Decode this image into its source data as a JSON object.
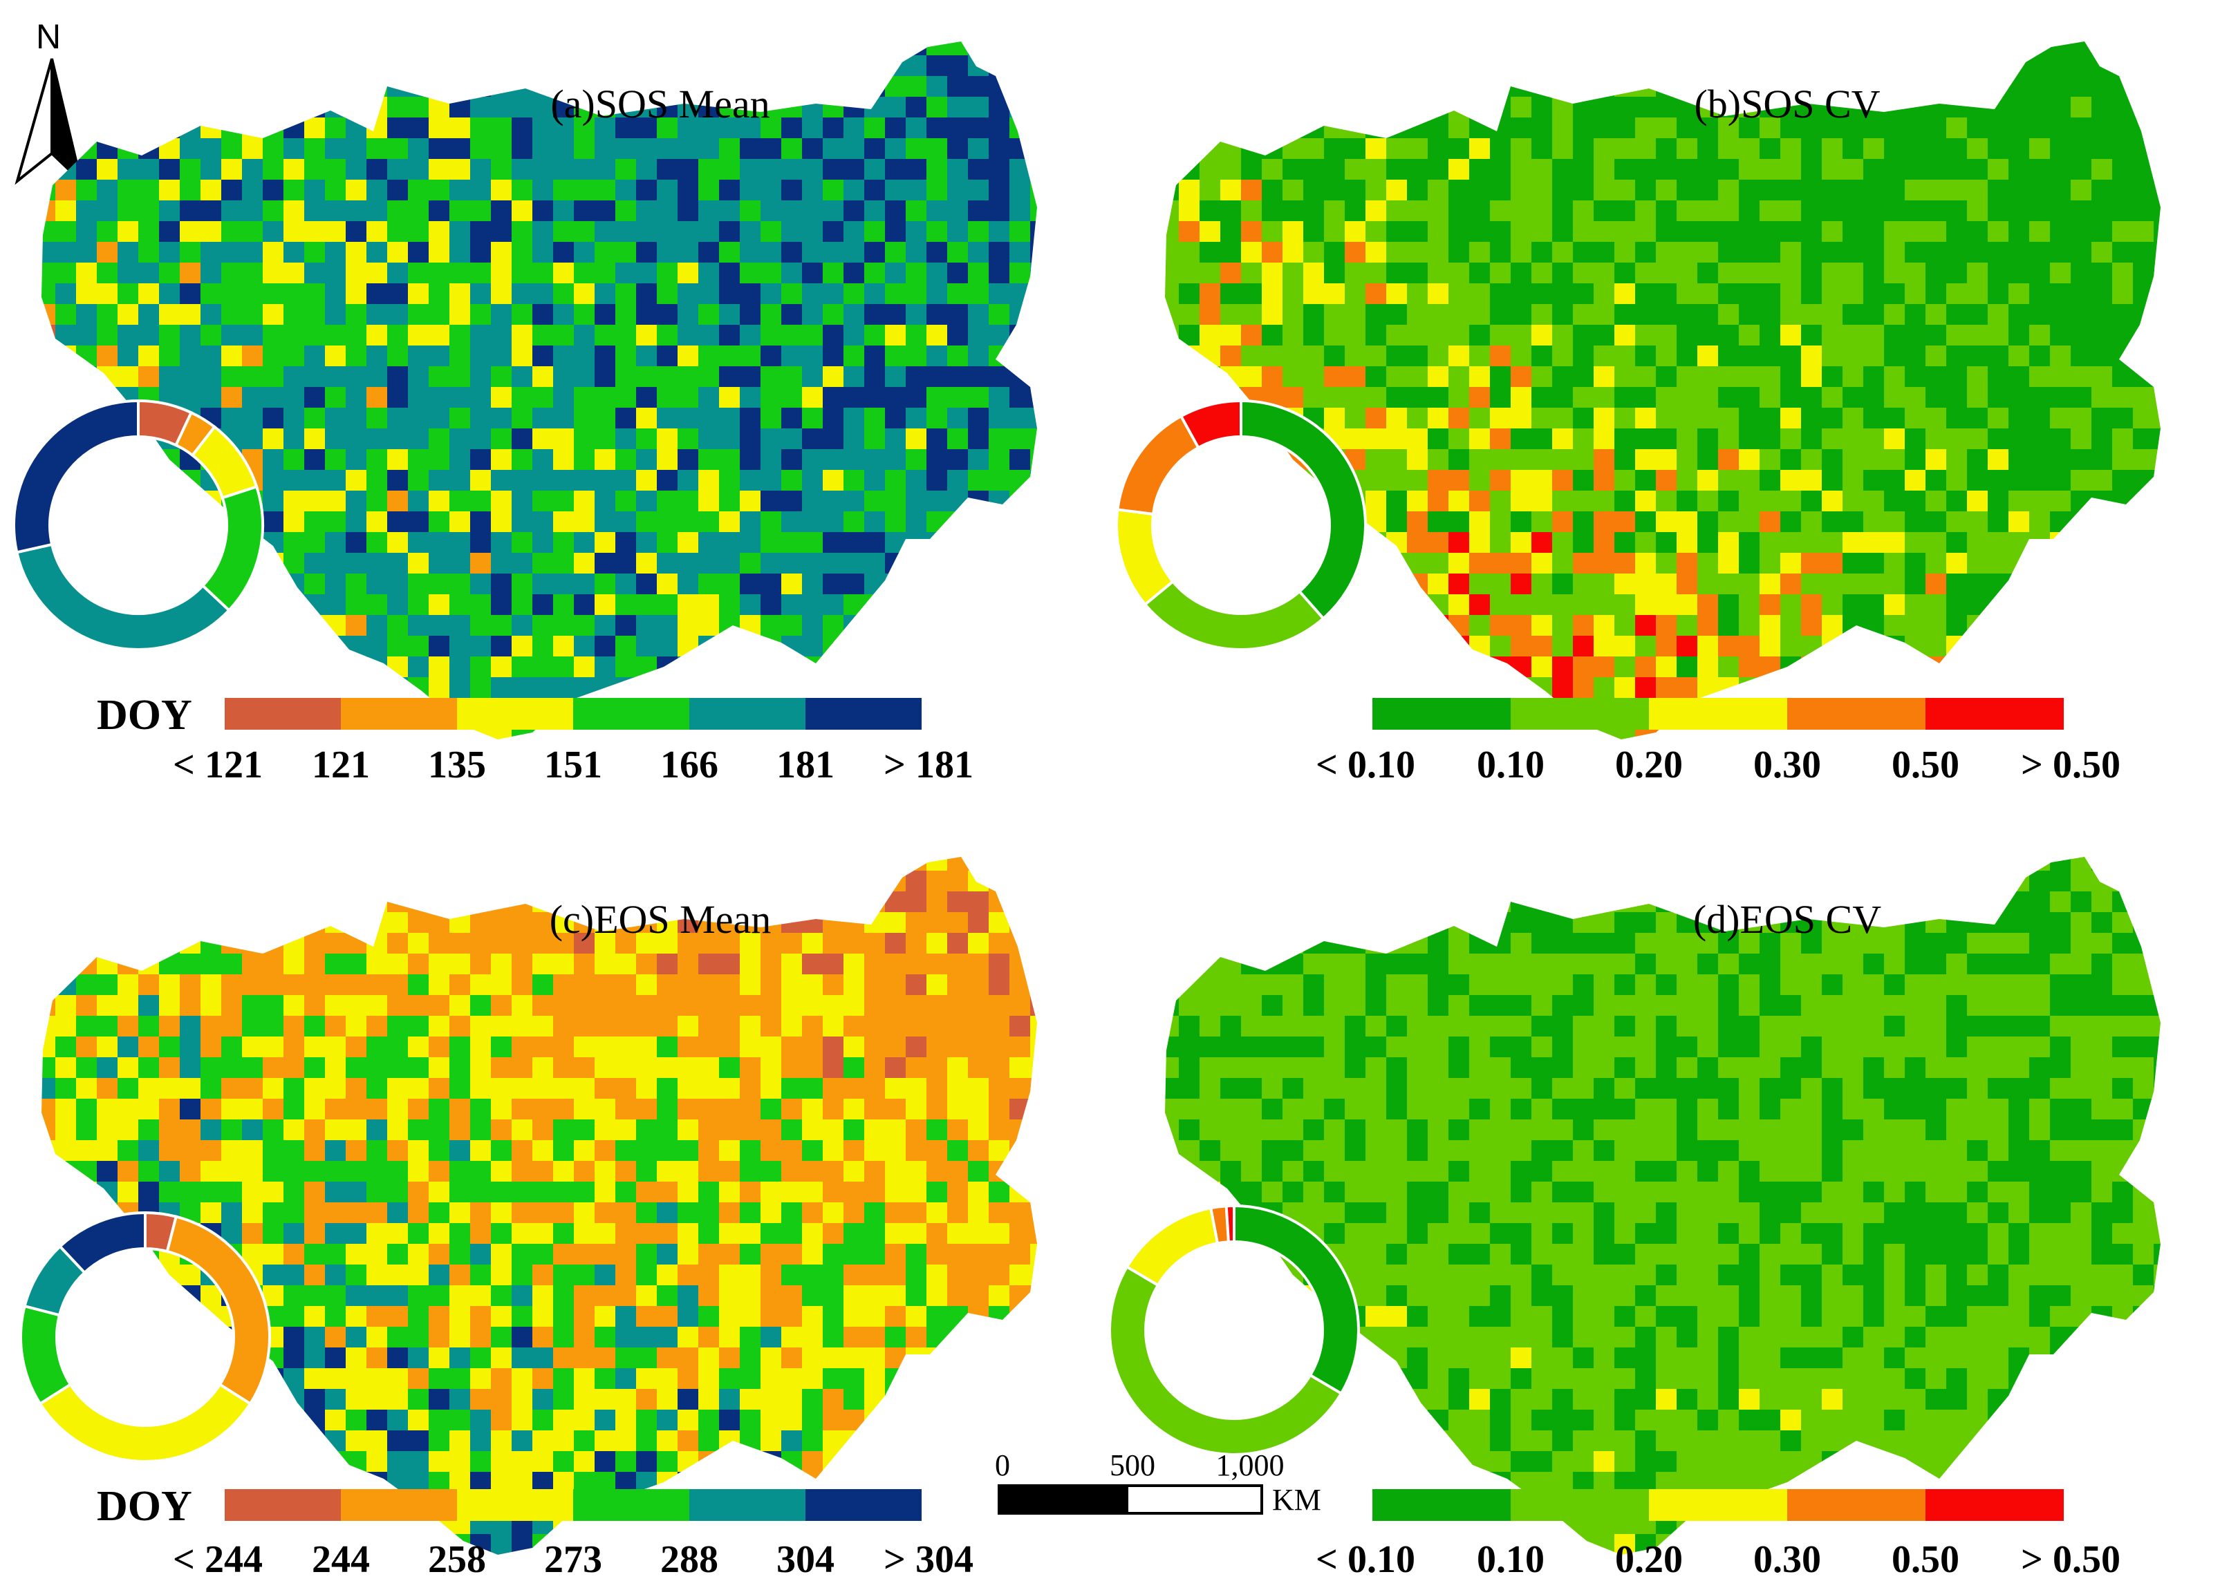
{
  "north_arrow": {
    "letter": "N"
  },
  "panels": [
    {
      "id": "a",
      "title": "(a)SOS Mean",
      "palette": [
        "#d35c3b",
        "#f89a0c",
        "#f7f400",
        "#14cc14",
        "#06918e",
        "#072f7e"
      ],
      "legend": {
        "prefix": "DOY",
        "ticks": [
          "< 121",
          "121",
          "135",
          "151",
          "166",
          "181",
          "> 181"
        ]
      },
      "donut": [
        {
          "category": "< 121",
          "color": "#d35c3b",
          "share": 0.07
        },
        {
          "category": "121-135",
          "color": "#f89a0c",
          "share": 0.035
        },
        {
          "category": "135-151",
          "color": "#f7f400",
          "share": 0.095
        },
        {
          "category": "151-166",
          "color": "#14cc14",
          "share": 0.17
        },
        {
          "category": "166-181",
          "color": "#06918e",
          "share": 0.345
        },
        {
          "category": "> 181",
          "color": "#072f7e",
          "share": 0.285
        }
      ],
      "map_mix": [
        0.1,
        0.05,
        0.12,
        0.22,
        0.28,
        0.23
      ]
    },
    {
      "id": "b",
      "title": "(b)SOS CV",
      "palette": [
        "#07a807",
        "#66cc00",
        "#f7f400",
        "#f87c0a",
        "#f80606"
      ],
      "legend": {
        "prefix": "",
        "ticks": [
          "< 0.10",
          "0.10",
          "0.20",
          "0.30",
          "0.50",
          "> 0.50"
        ]
      },
      "donut": [
        {
          "category": "< 0.10",
          "color": "#07a807",
          "share": 0.385
        },
        {
          "category": "0.10-0.20",
          "color": "#66cc00",
          "share": 0.255
        },
        {
          "category": "0.20-0.30",
          "color": "#f7f400",
          "share": 0.13
        },
        {
          "category": "0.30-0.50",
          "color": "#f87c0a",
          "share": 0.15
        },
        {
          "category": "> 0.50",
          "color": "#f80606",
          "share": 0.08
        }
      ],
      "map_mix": [
        0.4,
        0.24,
        0.12,
        0.14,
        0.1
      ]
    },
    {
      "id": "c",
      "title": "(c)EOS Mean",
      "palette": [
        "#d35c3b",
        "#f89a0c",
        "#f7f400",
        "#14cc14",
        "#06918e",
        "#072f7e"
      ],
      "legend": {
        "prefix": "DOY",
        "ticks": [
          "< 244",
          "244",
          "258",
          "273",
          "288",
          "304",
          "> 304"
        ]
      },
      "donut": [
        {
          "category": "< 244",
          "color": "#d35c3b",
          "share": 0.04
        },
        {
          "category": "244-258",
          "color": "#f89a0c",
          "share": 0.3
        },
        {
          "category": "258-273",
          "color": "#f7f400",
          "share": 0.32
        },
        {
          "category": "273-288",
          "color": "#14cc14",
          "share": 0.13
        },
        {
          "category": "288-304",
          "color": "#06918e",
          "share": 0.09
        },
        {
          "category": "> 304",
          "color": "#072f7e",
          "share": 0.12
        }
      ],
      "map_mix": [
        0.06,
        0.34,
        0.22,
        0.16,
        0.08,
        0.14
      ]
    },
    {
      "id": "d",
      "title": "(d)EOS CV",
      "palette": [
        "#07a807",
        "#66cc00",
        "#f7f400",
        "#f87c0a",
        "#f80606"
      ],
      "legend": {
        "prefix": "",
        "ticks": [
          "< 0.10",
          "0.10",
          "0.20",
          "0.30",
          "0.50",
          "> 0.50"
        ]
      },
      "donut": [
        {
          "category": "< 0.10",
          "color": "#07a807",
          "share": 0.335
        },
        {
          "category": "0.10-0.20",
          "color": "#66cc00",
          "share": 0.5
        },
        {
          "category": "0.20-0.30",
          "color": "#f7f400",
          "share": 0.135
        },
        {
          "category": "0.30-0.50",
          "color": "#f87c0a",
          "share": 0.02
        },
        {
          "category": "> 0.50",
          "color": "#f80606",
          "share": 0.01
        }
      ],
      "map_mix": [
        0.34,
        0.46,
        0.14,
        0.04,
        0.02
      ]
    }
  ],
  "scale_bar": {
    "ticks": [
      "0",
      "500",
      "1,000"
    ],
    "unit": "KM"
  }
}
